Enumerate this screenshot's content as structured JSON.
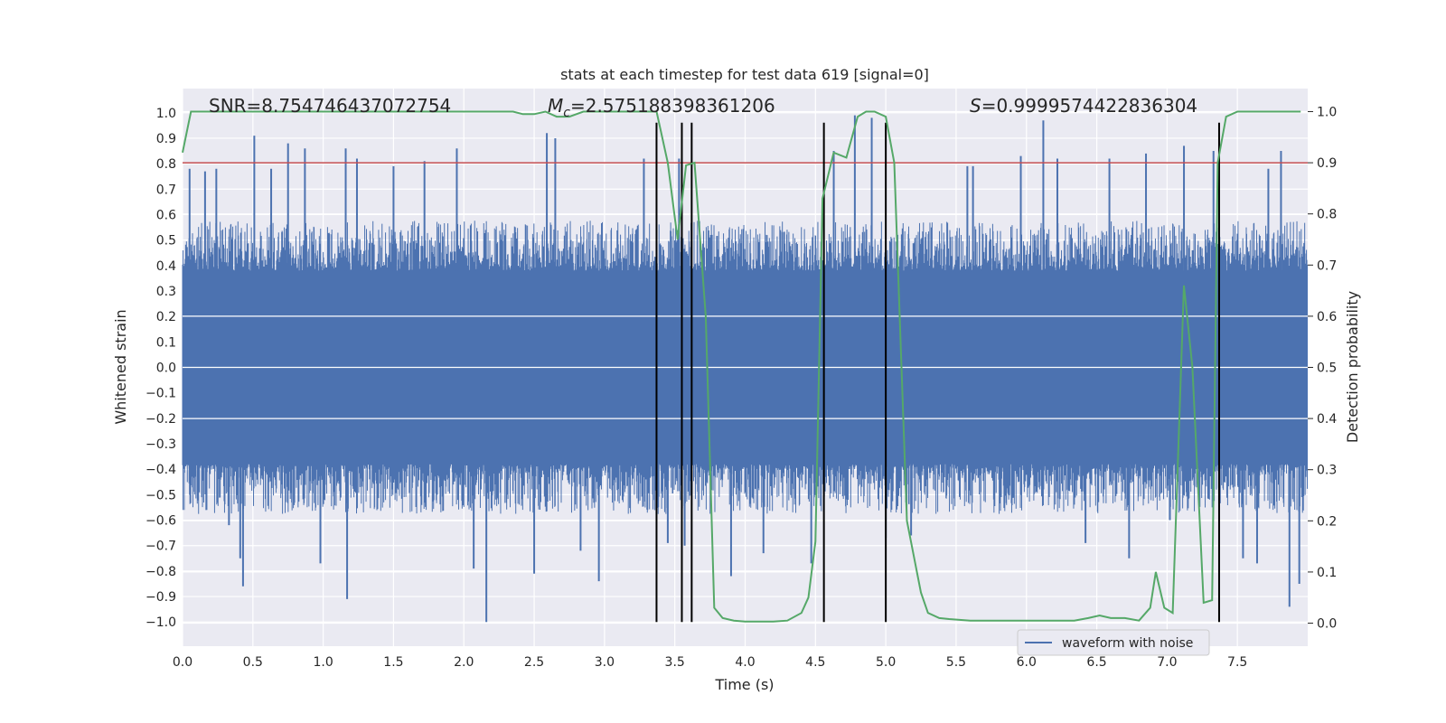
{
  "chart_data": {
    "type": "line",
    "title": "stats at each timestep for test data 619 [signal=0]",
    "xlabel": "Time (s)",
    "ylabel_left": "Whitened strain",
    "ylabel_right": "Detection probability",
    "xlim": [
      0.0,
      8.0
    ],
    "ylim_left": [
      -1.095,
      1.095
    ],
    "ylim_right": [
      -0.045,
      1.045
    ],
    "grid": true,
    "x_ticks": [
      0.0,
      0.5,
      1.0,
      1.5,
      2.0,
      2.5,
      3.0,
      3.5,
      4.0,
      4.5,
      5.0,
      5.5,
      6.0,
      6.5,
      7.0,
      7.5
    ],
    "x_tick_labels": [
      "0.0",
      "0.5",
      "1.0",
      "1.5",
      "2.0",
      "2.5",
      "3.0",
      "3.5",
      "4.0",
      "4.5",
      "5.0",
      "5.5",
      "6.0",
      "6.5",
      "7.0",
      "7.5"
    ],
    "y_left_ticks": [
      1.0,
      0.9,
      0.8,
      0.7,
      0.6,
      0.5,
      0.4,
      0.3,
      0.2,
      0.1,
      0.0,
      -0.1,
      -0.2,
      -0.3,
      -0.4,
      -0.5,
      -0.6,
      -0.7,
      -0.8,
      -0.9,
      -1.0
    ],
    "y_left_tick_labels": [
      "1.0",
      "0.9",
      "0.8",
      "0.7",
      "0.6",
      "0.5",
      "0.4",
      "0.3",
      "0.2",
      "0.1",
      "0.0",
      "−0.1",
      "−0.2",
      "−0.3",
      "−0.4",
      "−0.5",
      "−0.6",
      "−0.7",
      "−0.8",
      "−0.9",
      "−1.0"
    ],
    "y_right_ticks": [
      1.0,
      0.9,
      0.8,
      0.7,
      0.6,
      0.5,
      0.4,
      0.3,
      0.2,
      0.1,
      0.0
    ],
    "y_right_tick_labels": [
      "1.0",
      "0.9",
      "0.8",
      "0.7",
      "0.6",
      "0.5",
      "0.4",
      "0.3",
      "0.2",
      "0.1",
      "0.0"
    ],
    "annotations": {
      "snr": "SNR=8.754746437072754",
      "mc": "=2.575188398361206",
      "mc_symbol": "M",
      "mc_subscript": "c",
      "s": "=0.9999574422836304",
      "s_symbol": "S"
    },
    "threshold_right": 0.9,
    "threshold_color": "#c44e52",
    "event_lines_x": [
      3.37,
      3.55,
      3.62,
      4.56,
      5.0,
      7.37
    ],
    "event_line_color": "#000000",
    "series": [
      {
        "name": "waveform with noise",
        "axis": "left",
        "color": "#4c72b0",
        "envelope": {
          "sample_rate": 512,
          "typical_peak": 0.52,
          "extreme_spikes": [
            {
              "x": 0.05,
              "y": 0.78
            },
            {
              "x": 0.16,
              "y": 0.77
            },
            {
              "x": 0.17,
              "y": -0.56
            },
            {
              "x": 0.24,
              "y": 0.78
            },
            {
              "x": 0.33,
              "y": -0.62
            },
            {
              "x": 0.41,
              "y": -0.75
            },
            {
              "x": 0.43,
              "y": -0.86
            },
            {
              "x": 0.51,
              "y": 0.91
            },
            {
              "x": 0.63,
              "y": 0.78
            },
            {
              "x": 0.75,
              "y": 0.88
            },
            {
              "x": 0.87,
              "y": 0.86
            },
            {
              "x": 0.98,
              "y": -0.77
            },
            {
              "x": 1.16,
              "y": 0.86
            },
            {
              "x": 1.17,
              "y": -0.91
            },
            {
              "x": 1.24,
              "y": 0.82
            },
            {
              "x": 1.5,
              "y": 0.79
            },
            {
              "x": 1.72,
              "y": 0.81
            },
            {
              "x": 1.95,
              "y": 0.86
            },
            {
              "x": 2.07,
              "y": -0.79
            },
            {
              "x": 2.16,
              "y": -1.0
            },
            {
              "x": 2.5,
              "y": -0.81
            },
            {
              "x": 2.59,
              "y": 0.92
            },
            {
              "x": 2.65,
              "y": 0.9
            },
            {
              "x": 2.83,
              "y": -0.72
            },
            {
              "x": 2.96,
              "y": -0.84
            },
            {
              "x": 3.28,
              "y": 0.82
            },
            {
              "x": 3.45,
              "y": -0.69
            },
            {
              "x": 3.53,
              "y": 0.82
            },
            {
              "x": 3.57,
              "y": -0.7
            },
            {
              "x": 3.9,
              "y": -0.82
            },
            {
              "x": 4.13,
              "y": -0.73
            },
            {
              "x": 4.47,
              "y": -0.77
            },
            {
              "x": 4.63,
              "y": 0.85
            },
            {
              "x": 4.78,
              "y": 0.99
            },
            {
              "x": 4.9,
              "y": 0.98
            },
            {
              "x": 5.0,
              "y": -0.67
            },
            {
              "x": 5.18,
              "y": -0.66
            },
            {
              "x": 5.58,
              "y": 0.79
            },
            {
              "x": 5.62,
              "y": 0.79
            },
            {
              "x": 5.96,
              "y": 0.83
            },
            {
              "x": 6.12,
              "y": 0.97
            },
            {
              "x": 6.22,
              "y": 0.82
            },
            {
              "x": 6.42,
              "y": -0.69
            },
            {
              "x": 6.59,
              "y": 0.82
            },
            {
              "x": 6.73,
              "y": -0.75
            },
            {
              "x": 6.85,
              "y": 0.84
            },
            {
              "x": 7.02,
              "y": -0.6
            },
            {
              "x": 7.12,
              "y": 0.87
            },
            {
              "x": 7.33,
              "y": 0.85
            },
            {
              "x": 7.54,
              "y": -0.75
            },
            {
              "x": 7.64,
              "y": -0.77
            },
            {
              "x": 7.72,
              "y": 0.78
            },
            {
              "x": 7.81,
              "y": 0.85
            },
            {
              "x": 7.87,
              "y": -0.94
            },
            {
              "x": 7.94,
              "y": -0.85
            }
          ]
        }
      },
      {
        "name": "detection probability",
        "axis": "right",
        "color": "#55a868",
        "x": [
          0.0,
          0.06,
          0.15,
          0.3,
          0.6,
          1.0,
          1.5,
          2.0,
          2.35,
          2.42,
          2.5,
          2.58,
          2.66,
          2.75,
          2.85,
          3.0,
          3.3,
          3.37,
          3.45,
          3.52,
          3.58,
          3.64,
          3.72,
          3.78,
          3.84,
          3.92,
          4.0,
          4.1,
          4.2,
          4.3,
          4.4,
          4.45,
          4.5,
          4.55,
          4.63,
          4.72,
          4.8,
          4.86,
          4.92,
          5.0,
          5.06,
          5.15,
          5.25,
          5.3,
          5.38,
          5.45,
          5.6,
          5.8,
          6.0,
          6.2,
          6.34,
          6.44,
          6.52,
          6.6,
          6.7,
          6.8,
          6.88,
          6.92,
          6.98,
          7.04,
          7.12,
          7.18,
          7.26,
          7.32,
          7.36,
          7.42,
          7.5,
          7.6,
          7.75,
          7.95
        ],
        "values": [
          0.92,
          1.0,
          1.0,
          1.0,
          1.0,
          1.0,
          1.0,
          1.0,
          1.0,
          0.995,
          0.995,
          1.0,
          0.99,
          0.99,
          1.0,
          1.0,
          1.0,
          1.0,
          0.9,
          0.75,
          0.895,
          0.9,
          0.6,
          0.03,
          0.01,
          0.005,
          0.003,
          0.003,
          0.003,
          0.005,
          0.02,
          0.05,
          0.16,
          0.83,
          0.92,
          0.91,
          0.99,
          1.0,
          1.0,
          0.99,
          0.9,
          0.2,
          0.06,
          0.02,
          0.01,
          0.008,
          0.005,
          0.005,
          0.005,
          0.005,
          0.005,
          0.01,
          0.015,
          0.01,
          0.01,
          0.005,
          0.03,
          0.1,
          0.03,
          0.02,
          0.66,
          0.5,
          0.04,
          0.045,
          0.9,
          0.99,
          1.0,
          1.0,
          1.0,
          1.0
        ]
      }
    ],
    "legend": {
      "label": "waveform with noise",
      "location": "lower-right"
    }
  }
}
